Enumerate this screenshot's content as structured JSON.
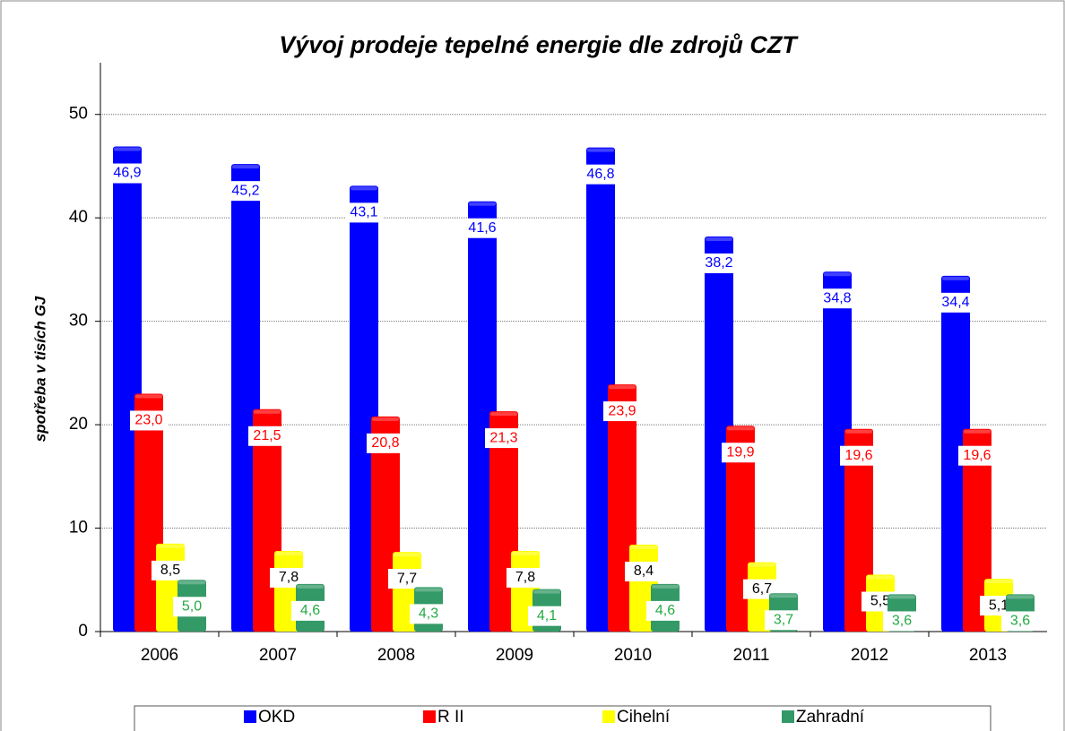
{
  "chart_data": {
    "type": "bar",
    "title": "Vývoj prodeje tepelné energie dle zdrojů CZT",
    "y_label": "spotřeba v  tisích GJ",
    "categories": [
      "2006",
      "2007",
      "2008",
      "2009",
      "2010",
      "2011",
      "2012",
      "2013"
    ],
    "series": [
      {
        "name": "OKD",
        "color": "#0000ff",
        "label_color": "#0000ff",
        "values": [
          46.9,
          45.2,
          43.1,
          41.6,
          46.8,
          38.2,
          34.8,
          34.4
        ],
        "value_labels": [
          "46,9",
          "45,2",
          "43,1",
          "41,6",
          "46,8",
          "38,2",
          "34,8",
          "34,4"
        ]
      },
      {
        "name": "R II",
        "color": "#ff0000",
        "label_color": "#ff0000",
        "values": [
          23.0,
          21.5,
          20.8,
          21.3,
          23.9,
          19.9,
          19.6,
          19.6
        ],
        "value_labels": [
          "23,0",
          "21,5",
          "20,8",
          "21,3",
          "23,9",
          "19,9",
          "19,6",
          "19,6"
        ]
      },
      {
        "name": "Cihelní",
        "color": "#ffff00",
        "label_color": "#000000",
        "values": [
          8.5,
          7.8,
          7.7,
          7.8,
          8.4,
          6.7,
          5.5,
          5.1
        ],
        "value_labels": [
          "8,5",
          "7,8",
          "7,7",
          "7,8",
          "8,4",
          "6,7",
          "5,5",
          "5,1"
        ]
      },
      {
        "name": "Zahradní",
        "color": "#339966",
        "label_color": "#22aa44",
        "values": [
          5.0,
          4.6,
          4.3,
          4.1,
          4.6,
          3.7,
          3.6,
          3.6
        ],
        "value_labels": [
          "5,0",
          "4,6",
          "4,3",
          "4,1",
          "4,6",
          "3,7",
          "3,6",
          "3,6"
        ]
      }
    ],
    "ylim": [
      0,
      55
    ],
    "yticks": [
      0,
      10,
      20,
      30,
      40,
      50
    ],
    "grid": true,
    "legend": "bottom"
  }
}
